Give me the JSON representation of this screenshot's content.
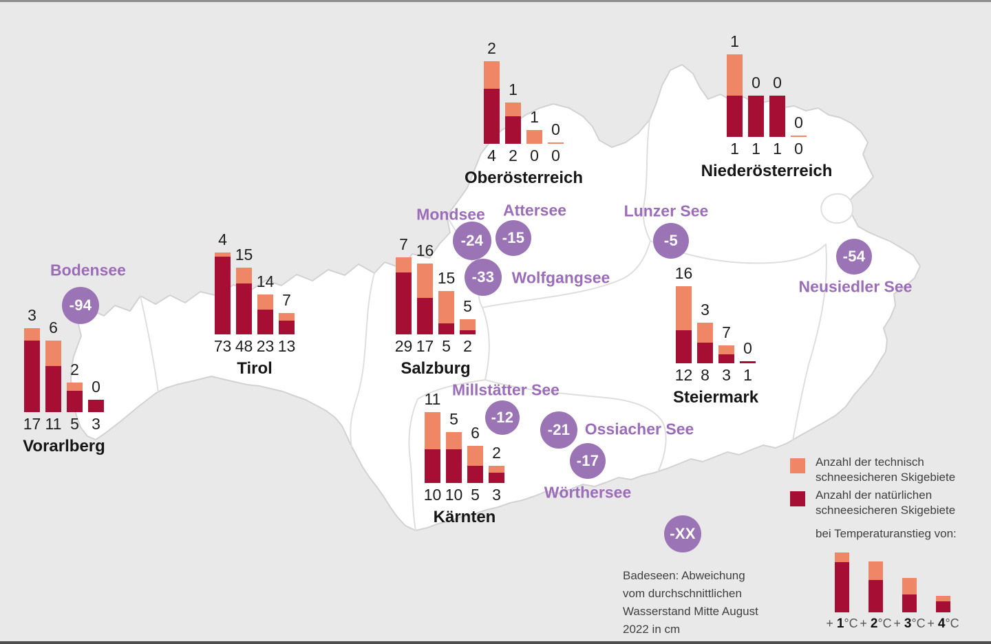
{
  "chart_data": {
    "type": "bar",
    "categories": [
      "+1°C",
      "+2°C",
      "+3°C",
      "+4°C"
    ],
    "series_meaning": {
      "technical": "Anzahl der technisch schneesicheren Skigebiete",
      "natural": "Anzahl der natürlichen schneesicheren Skigebiete"
    },
    "regions": [
      {
        "name": "Vorarlberg",
        "technical": [
          3,
          6,
          2,
          0
        ],
        "natural": [
          17,
          11,
          5,
          3
        ]
      },
      {
        "name": "Tirol",
        "technical": [
          4,
          15,
          14,
          7
        ],
        "natural": [
          73,
          48,
          23,
          13
        ]
      },
      {
        "name": "Salzburg",
        "technical": [
          7,
          16,
          15,
          5
        ],
        "natural": [
          29,
          17,
          5,
          2
        ]
      },
      {
        "name": "Oberösterreich",
        "technical": [
          2,
          1,
          1,
          0
        ],
        "natural": [
          4,
          2,
          0,
          0
        ]
      },
      {
        "name": "Niederösterreich",
        "technical": [
          1,
          0,
          0,
          0
        ],
        "natural": [
          1,
          1,
          1,
          0
        ]
      },
      {
        "name": "Steiermark",
        "technical": [
          16,
          3,
          7,
          0
        ],
        "natural": [
          12,
          8,
          3,
          1
        ]
      },
      {
        "name": "Kärnten",
        "technical": [
          11,
          5,
          6,
          2
        ],
        "natural": [
          10,
          10,
          5,
          3
        ]
      }
    ],
    "lakes": [
      {
        "name": "Bodensee",
        "value": -94
      },
      {
        "name": "Mondsee",
        "value": -24
      },
      {
        "name": "Attersee",
        "value": -15
      },
      {
        "name": "Wolfgangsee",
        "value": -33
      },
      {
        "name": "Lunzer See",
        "value": -5
      },
      {
        "name": "Neusiedler See",
        "value": -54
      },
      {
        "name": "Millstätter See",
        "value": -12
      },
      {
        "name": "Ossiacher See",
        "value": -21
      },
      {
        "name": "Wörthersee",
        "value": -17
      }
    ]
  },
  "legend": {
    "technical_label_lines": [
      "Anzahl der technisch",
      "schneesicheren Skigebiete"
    ],
    "natural_label_lines": [
      "Anzahl der natürlichen",
      "schneesicheren Skigebiete"
    ],
    "temperature_caption": "bei Temperaturanstieg von:",
    "tick_prefix": "+",
    "tick_unit": "°C",
    "temperature_ticks": [
      "1",
      "2",
      "3",
      "4"
    ],
    "lake_symbol": "-XX",
    "lake_caption_lines": [
      "Badeseen: Abweichung",
      "vom durchschnittlichen",
      "Wasserstand Mitte August",
      "2022 in cm"
    ]
  },
  "colors": {
    "technical": "#ef8767",
    "natural": "#a60f33",
    "lake_circle": "#9b74b5",
    "lake_label": "#9b6cb8",
    "background": "#eae9e9",
    "map_fill": "#ffffff",
    "map_border": "#d2d2d2",
    "text": "#1d1d1d"
  }
}
